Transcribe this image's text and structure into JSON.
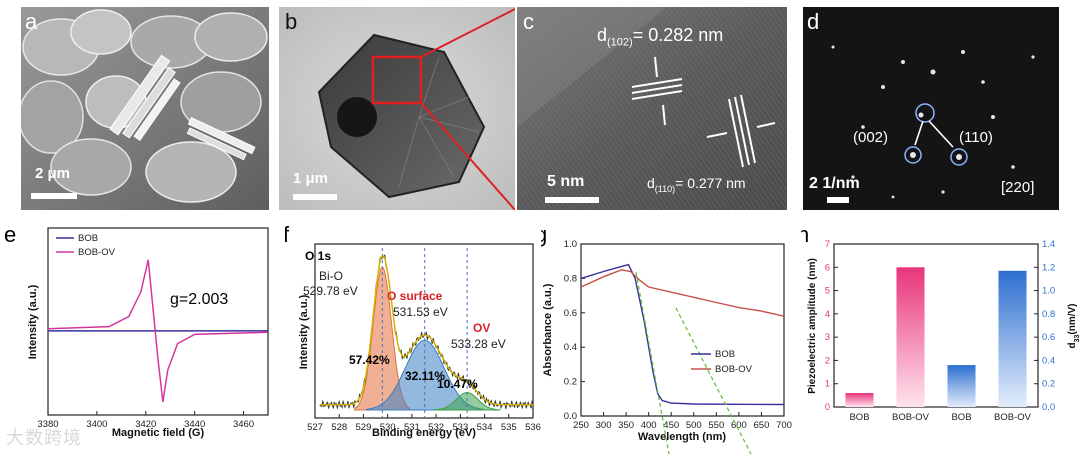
{
  "figure": {
    "panels": {
      "a": {
        "label": "a",
        "scale_bar": "2 μm"
      },
      "b": {
        "label": "b",
        "scale_bar": "1 μm"
      },
      "c": {
        "label": "c",
        "scale_bar": "5 nm",
        "d_top_prefix": "d",
        "d_top_sub": "(102)",
        "d_top_value": "= 0.282 nm",
        "d_bot_prefix": "d",
        "d_bot_sub": "(110)",
        "d_bot_value": "= 0.277 nm"
      },
      "d": {
        "label": "d",
        "scale_bar": "2 1/nm",
        "spot1": "(002)",
        "spot2": "(110)",
        "zone": "[220]"
      },
      "e": {
        "label": "e",
        "g_text": "g=2.003"
      },
      "f": {
        "label": "f",
        "title": "O 1s",
        "peak1_name": "Bi-O",
        "peak1_ev": "529.78 eV",
        "peak2_name": "O surface",
        "peak2_ev": "531.53 eV",
        "peak3_name": "OV",
        "peak3_ev": "533.28 eV",
        "pct1": "57.42%",
        "pct2": "32.11%",
        "pct3": "10.47%"
      },
      "g": {
        "label": "g"
      },
      "h": {
        "label": "h"
      }
    },
    "watermark": "大数跨境"
  },
  "chart_data": [
    {
      "id": "e",
      "type": "line",
      "title": "",
      "xlabel": "Magnetic field (G)",
      "ylabel": "Intensity (a.u.)",
      "xlim": [
        3380,
        3470
      ],
      "xticks": [
        "3380",
        "3400",
        "3420",
        "3440",
        "3460"
      ],
      "series": [
        {
          "name": "BOB",
          "color": "#3a2fa0",
          "x": [
            3380,
            3400,
            3420,
            3440,
            3470
          ],
          "y": [
            0,
            0,
            0,
            0,
            0
          ]
        },
        {
          "name": "BOB-OV",
          "color": "#d6359b",
          "x": [
            3380,
            3405,
            3413,
            3418,
            3421,
            3423,
            3425,
            3427,
            3429,
            3433,
            3440,
            3470
          ],
          "y": [
            0.03,
            0.06,
            0.2,
            0.55,
            1.0,
            0.3,
            -0.4,
            -1.0,
            -0.55,
            -0.18,
            -0.05,
            -0.02
          ]
        }
      ]
    },
    {
      "id": "f",
      "type": "area",
      "xlabel": "Binding energy (eV)",
      "ylabel": "Intensity (a.u.)",
      "xlim": [
        527,
        536
      ],
      "xticks": [
        "527",
        "528",
        "529",
        "530",
        "531",
        "532",
        "533",
        "534",
        "535",
        "536"
      ],
      "series": [
        {
          "name": "Bi-O",
          "center": 529.78,
          "color": "#e2703a"
        },
        {
          "name": "O surface",
          "center": 531.53,
          "color": "#3a7fc4"
        },
        {
          "name": "OV",
          "center": 533.28,
          "color": "#3ca24a"
        }
      ]
    },
    {
      "id": "g",
      "type": "line",
      "xlabel": "Wavelength (nm)",
      "ylabel": "Absorbance (a.u.)",
      "xlim": [
        250,
        700
      ],
      "ylim": [
        0,
        1.0
      ],
      "xticks": [
        "250",
        "300",
        "350",
        "400",
        "450",
        "500",
        "550",
        "600",
        "650",
        "700"
      ],
      "yticks": [
        "0.0",
        "0.2",
        "0.4",
        "0.6",
        "0.8",
        "1.0"
      ],
      "series": [
        {
          "name": "BOB",
          "color": "#3a2fa0",
          "x": [
            250,
            300,
            340,
            355,
            370,
            390,
            410,
            420,
            430,
            450,
            500,
            600,
            700
          ],
          "y": [
            0.8,
            0.84,
            0.87,
            0.88,
            0.8,
            0.55,
            0.25,
            0.13,
            0.09,
            0.075,
            0.07,
            0.068,
            0.067
          ]
        },
        {
          "name": "BOB-OV",
          "color": "#c9504a",
          "x": [
            250,
            300,
            340,
            360,
            380,
            400,
            450,
            500,
            550,
            600,
            650,
            700
          ],
          "y": [
            0.75,
            0.81,
            0.85,
            0.84,
            0.79,
            0.75,
            0.72,
            0.69,
            0.66,
            0.63,
            0.61,
            0.58
          ]
        }
      ]
    },
    {
      "id": "h",
      "type": "bar",
      "categories": [
        "BOB",
        "BOB-OV",
        "BOB",
        "BOB-OV"
      ],
      "series": [
        {
          "name": "Piezoelectric amplitude (nm)",
          "axis": "left",
          "values": [
            0.6,
            6.0,
            null,
            null
          ],
          "color": "#e8357a"
        },
        {
          "name": "d33 (nm/V)",
          "axis": "right",
          "values": [
            null,
            null,
            0.36,
            1.17
          ],
          "color": "#2d6fd0"
        }
      ],
      "ylabel_left": "Piezoelectric amplitude (nm)",
      "ylabel_right_main": "d",
      "ylabel_right_sub": "33",
      "ylabel_right_unit": "(nm/V)",
      "ylim_left": [
        0,
        7
      ],
      "ylim_right": [
        0,
        1.4
      ],
      "yticks_left": [
        "0",
        "1",
        "2",
        "3",
        "4",
        "5",
        "6",
        "7"
      ],
      "yticks_right": [
        "0.0",
        "0.2",
        "0.4",
        "0.6",
        "0.8",
        "1.0",
        "1.2",
        "1.4"
      ]
    }
  ]
}
